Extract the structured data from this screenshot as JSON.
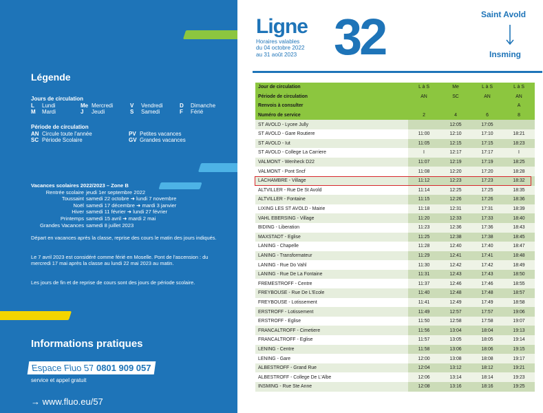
{
  "legend": {
    "title": "Légende",
    "days_title": "Jours de circulation",
    "days": [
      {
        "k": "L",
        "v": "Lundi"
      },
      {
        "k": "Me",
        "v": "Mercredi"
      },
      {
        "k": "V",
        "v": "Vendredi"
      },
      {
        "k": "D",
        "v": "Dimanche"
      },
      {
        "k": "M",
        "v": "Mardi"
      },
      {
        "k": "J",
        "v": "Jeudi"
      },
      {
        "k": "S",
        "v": "Samedi"
      },
      {
        "k": "F",
        "v": "Férié"
      }
    ],
    "period_title": "Période de circulation",
    "periods": [
      {
        "k": "AN",
        "v": "Circule toute l'année"
      },
      {
        "k": "PV",
        "v": "Petites vacances"
      },
      {
        "k": "SC",
        "v": "Période Scolaire"
      },
      {
        "k": "GV",
        "v": "Grandes vacances"
      }
    ],
    "vacances_title": "Vacances scolaires 2022/2023 – Zone B",
    "vacances": [
      {
        "label": "Rentrée scolaire",
        "value": "jeudi 1er septembre 2022"
      },
      {
        "label": "Toussaint",
        "value": "samedi 22 octobre  ➜ lundi 7 novembre"
      },
      {
        "label": "Noël",
        "value": "samedi 17 décembre ➜ mardi 3 janvier"
      },
      {
        "label": "Hiver",
        "value": "samedi 11 février  ➜ lundi 27 février"
      },
      {
        "label": "Printemps",
        "value": "samedi 15 avril ➜ mardi 2 mai"
      },
      {
        "label": "Grandes Vacances",
        "value": "samedi 8 juillet 2023"
      }
    ],
    "note1": "Départ en vacances après la classe, reprise des cours le matin des jours indiqués.",
    "note2": "Le 7 avril 2023 est considéré comme férié en Moselle. Pont de l'ascension : du mercredi 17 mai après la classe au lundi 22 mai 2023 au matin.",
    "note3": "Les jours de fin et de reprise de cours sont des jours de période scolaire."
  },
  "info": {
    "title": "Informations pratiques",
    "fluo_label": "Espace Fluo 57",
    "phone": "0801 909 057",
    "service": "service et appel gratuit",
    "website": "→ www.fluo.eu/57"
  },
  "header": {
    "ligne": "Ligne",
    "valid_line1": "Horaires valables",
    "valid_line2": "du 04 octobre 2022",
    "valid_line3": "au 31 août 2023",
    "number": "32",
    "from": "Saint Avold",
    "to": "Insming"
  },
  "table": {
    "header_rows": [
      [
        "Jour de circulation",
        "L à S",
        "Me",
        "L à S",
        "L à S"
      ],
      [
        "Période de circulation",
        "AN",
        "SC",
        "AN",
        "AN"
      ],
      [
        "Renvois à consulter",
        "",
        "",
        "",
        "A"
      ],
      [
        "Numéro de service",
        "2",
        "4",
        "6",
        "8"
      ]
    ],
    "stops": [
      [
        "ST AVOLD - Lycee Jully",
        "",
        "12:05",
        "17:05",
        ""
      ],
      [
        "ST AVOLD - Gare Routiere",
        "11:00",
        "12:10",
        "17:10",
        "18:21"
      ],
      [
        "ST AVOLD - Iut",
        "11:05",
        "12:15",
        "17:15",
        "18:23"
      ],
      [
        "ST AVOLD - College La Carriere",
        "I",
        "12:17",
        "17:17",
        "I"
      ],
      [
        "VALMONT - Wenheck D22",
        "11:07",
        "12:19",
        "17:19",
        "18:25"
      ],
      [
        "VALMONT - Pont Sncf",
        "11:08",
        "12:20",
        "17:20",
        "18:28"
      ],
      [
        "LACHAMBRE - Village",
        "11:12",
        "12:23",
        "17:23",
        "18:32"
      ],
      [
        "ALTVILLER - Rue De St Avold",
        "11:14",
        "12:25",
        "17:25",
        "18:35"
      ],
      [
        "ALTVILLER - Fontaine",
        "11:15",
        "12:26",
        "17:26",
        "18:36"
      ],
      [
        "LIXING LES ST AVOLD - Mairie",
        "11:18",
        "12:31",
        "17:31",
        "18:39"
      ],
      [
        "VAHL EBERSING - Village",
        "11:20",
        "12:33",
        "17:33",
        "18:40"
      ],
      [
        "BIDING - Liberation",
        "11:23",
        "12:36",
        "17:36",
        "18:43"
      ],
      [
        "MAXSTADT - Eglise",
        "11:25",
        "12:38",
        "17:38",
        "18:45"
      ],
      [
        "LANING - Chapelle",
        "11:28",
        "12:40",
        "17:40",
        "18:47"
      ],
      [
        "LANING - Transformateur",
        "11:29",
        "12:41",
        "17:41",
        "18:48"
      ],
      [
        "LANING - Rue Do Vahl",
        "11:30",
        "12:42",
        "17:42",
        "18:49"
      ],
      [
        "LANING - Rue De La Fontaine",
        "11:31",
        "12:43",
        "17:43",
        "18:50"
      ],
      [
        "FREMESTROFF - Centre",
        "11:37",
        "12:46",
        "17:46",
        "18:55"
      ],
      [
        "FREYBOUSE - Rue De L'Ecole",
        "11:40",
        "12:48",
        "17:48",
        "18:57"
      ],
      [
        "FREYBOUSE - Lotissement",
        "11:41",
        "12:49",
        "17:49",
        "18:58"
      ],
      [
        "ERSTROFF - Lotissement",
        "11:49",
        "12:57",
        "17:57",
        "19:06"
      ],
      [
        "ERSTROFF - Eglise",
        "11:50",
        "12:58",
        "17:58",
        "19:07"
      ],
      [
        "FRANCALTROFF - Cimetiere",
        "11:56",
        "13:04",
        "18:04",
        "19:13"
      ],
      [
        "FRANCALTROFF - Eglise",
        "11:57",
        "13:05",
        "18:05",
        "19:14"
      ],
      [
        "LENING - Centre",
        "11:58",
        "13:06",
        "18:06",
        "19:15"
      ],
      [
        "LENING - Gare",
        "12:00",
        "13:08",
        "18:08",
        "19:17"
      ],
      [
        "ALBESTROFF - Grand Rue",
        "12:04",
        "13:12",
        "18:12",
        "19:21"
      ],
      [
        "ALBESTROFF - College De L'Albe",
        "12:06",
        "13:14",
        "18:14",
        "19:23"
      ],
      [
        "INSMING - Rue Ste Anne",
        "12:08",
        "13:16",
        "18:16",
        "19:25"
      ]
    ],
    "highlight_color": "#d8262c"
  },
  "colors": {
    "brand_blue": "#1e74b8",
    "green": "#8cc63f",
    "yellow": "#f2d500",
    "light_blue": "#4db3e6"
  }
}
